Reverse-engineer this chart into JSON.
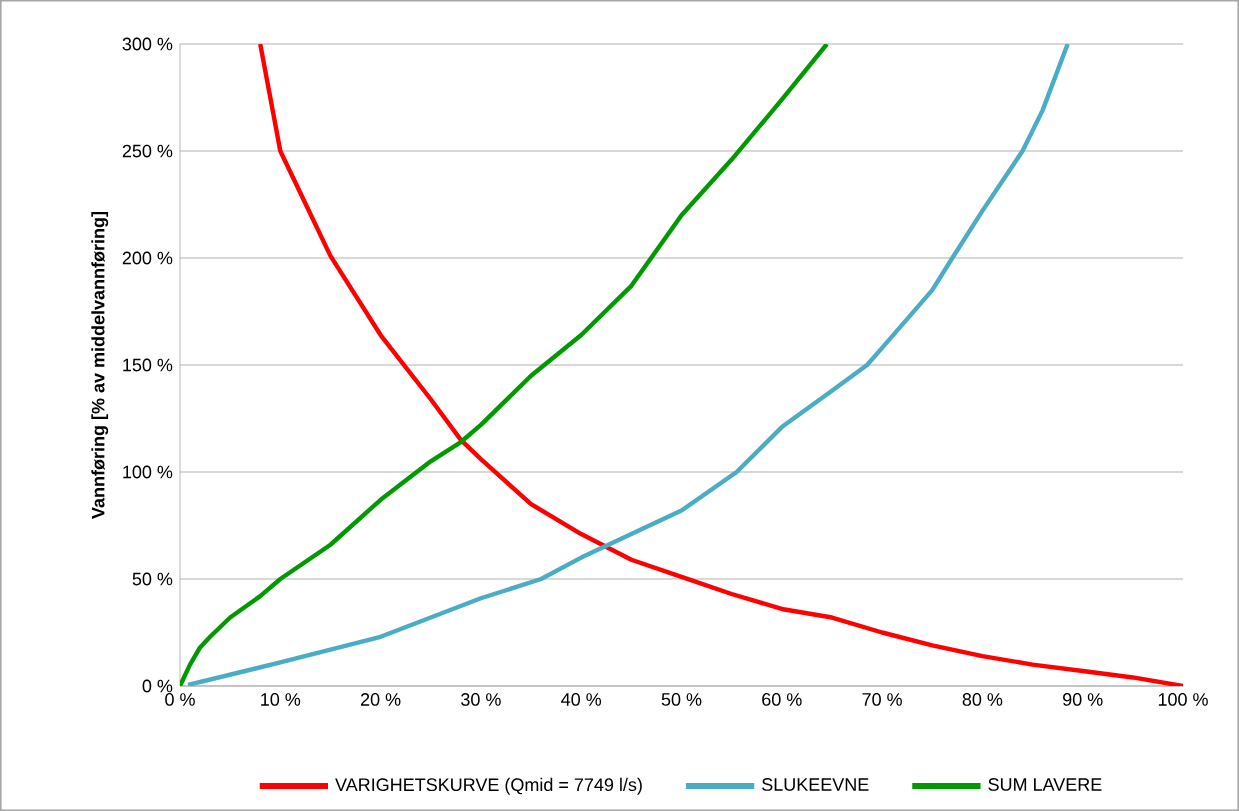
{
  "chart_data": {
    "type": "line",
    "ylabel": "Vannføring [% av middelvannføring]",
    "xlim": [
      0,
      100
    ],
    "ylim": [
      0,
      300
    ],
    "xticks": [
      {
        "value": 0,
        "label": "0 %"
      },
      {
        "value": 10,
        "label": "10 %"
      },
      {
        "value": 20,
        "label": "20 %"
      },
      {
        "value": 30,
        "label": "30 %"
      },
      {
        "value": 40,
        "label": "40 %"
      },
      {
        "value": 50,
        "label": "50 %"
      },
      {
        "value": 60,
        "label": "60 %"
      },
      {
        "value": 70,
        "label": "70 %"
      },
      {
        "value": 80,
        "label": "80 %"
      },
      {
        "value": 90,
        "label": "90 %"
      },
      {
        "value": 100,
        "label": "100 %"
      }
    ],
    "yticks": [
      {
        "value": 0,
        "label": "0 %"
      },
      {
        "value": 50,
        "label": "50 %"
      },
      {
        "value": 100,
        "label": "100 %"
      },
      {
        "value": 150,
        "label": "150 %"
      },
      {
        "value": 200,
        "label": "200 %"
      },
      {
        "value": 250,
        "label": "250 %"
      },
      {
        "value": 300,
        "label": "300 %"
      }
    ],
    "grid": "y",
    "legend": "bottom",
    "marker": "none",
    "line_style": "solid",
    "series": [
      {
        "name": "VARIGHETSKURVE (Qmid = 7749 l/s)",
        "color": "#ff0000",
        "x": [
          8,
          10,
          15,
          20,
          25,
          28,
          30,
          35,
          40,
          45,
          50,
          55,
          60,
          65,
          70,
          75,
          80,
          85,
          90,
          95,
          100
        ],
        "values": [
          300,
          250,
          201,
          164,
          134,
          115,
          106,
          85,
          71,
          59,
          51,
          43,
          36,
          32,
          25,
          19,
          14,
          10,
          7,
          4,
          0
        ]
      },
      {
        "name": "SLUKEEVNE",
        "color": "#4bacc6",
        "x": [
          0.8,
          10,
          20,
          30,
          36,
          40,
          50,
          55.5,
          60,
          65,
          68.5,
          70,
          75,
          77,
          80,
          84,
          86,
          88.5
        ],
        "values": [
          0.5,
          11,
          23,
          41,
          50,
          60,
          82,
          100,
          121,
          138,
          150,
          158,
          185,
          200,
          222,
          250,
          269,
          300
        ]
      },
      {
        "name": "SUM LAVERE",
        "color": "#009900",
        "x": [
          0,
          0.5,
          1,
          2,
          3,
          5,
          8,
          10,
          15,
          20,
          25,
          28,
          30,
          35,
          40,
          45,
          50,
          55,
          60,
          64.5
        ],
        "values": [
          0,
          5,
          10,
          18,
          23,
          32,
          42,
          50,
          66,
          87,
          105,
          114,
          122,
          145,
          164,
          187,
          220,
          246,
          274,
          300
        ]
      }
    ]
  }
}
